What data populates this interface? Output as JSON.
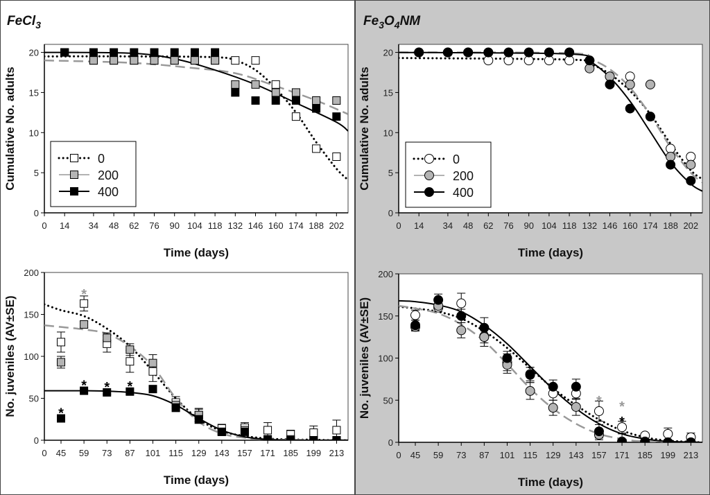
{
  "panels": {
    "left": {
      "title_parts": [
        "FeCl",
        "3",
        ""
      ],
      "background": "#ffffff"
    },
    "right": {
      "title_parts": [
        "Fe",
        "3",
        "O",
        "4",
        "NM"
      ],
      "background": "#c8c8c8"
    }
  },
  "colors": {
    "open_fill": "#ffffff",
    "gray_fill": "#b4b4b4",
    "black_fill": "#000000",
    "dashed_line": "#999999",
    "asterisk_gray": "#999999",
    "asterisk_black": "#000000"
  },
  "chart_data": [
    {
      "id": "fecl3-adults",
      "type": "scatter",
      "panel": "left",
      "marker": "square",
      "xlabel": "Time (days)",
      "ylabel": "Cumulative No. adults",
      "ylim": [
        0,
        21
      ],
      "xlim": [
        0,
        210
      ],
      "x_scale": "linear",
      "yticks": [
        0,
        5,
        10,
        15,
        20
      ],
      "xticks": [
        0,
        14,
        34,
        48,
        62,
        76,
        90,
        104,
        118,
        132,
        146,
        160,
        174,
        188,
        202
      ],
      "legend": {
        "placement": "bottom-left",
        "entries": [
          "0",
          "200",
          "400"
        ]
      },
      "series": [
        {
          "name": "0",
          "style": "open",
          "line": "dotted",
          "x": [
            14,
            34,
            48,
            62,
            76,
            90,
            104,
            118,
            132,
            146,
            160,
            174,
            188,
            202
          ],
          "y": [
            20,
            19,
            19,
            19,
            19,
            19,
            19,
            19,
            19,
            19,
            16,
            12,
            8,
            7
          ],
          "fit": {
            "x": [
              0,
              60,
              118,
              132,
              146,
              160,
              174,
              188,
              202,
              210
            ],
            "y": [
              19.5,
              19.5,
              19.4,
              19.0,
              17.8,
              15.5,
              12.5,
              8.8,
              5.5,
              4.1
            ]
          }
        },
        {
          "name": "200",
          "style": "gray",
          "line": "dashed",
          "x": [
            14,
            34,
            48,
            62,
            76,
            90,
            104,
            118,
            132,
            146,
            160,
            174,
            188,
            202
          ],
          "y": [
            20,
            19,
            19,
            19,
            19,
            19,
            19,
            19,
            16,
            16,
            15,
            15,
            14,
            14
          ],
          "fit": {
            "x": [
              0,
              60,
              100,
              132,
              160,
              188,
              210
            ],
            "y": [
              19,
              18.7,
              18.1,
              17.4,
              15.8,
              14.0,
              12.3
            ]
          }
        },
        {
          "name": "400",
          "style": "black",
          "line": "solid",
          "x": [
            14,
            34,
            48,
            62,
            76,
            90,
            104,
            118,
            132,
            146,
            160,
            174,
            188,
            202
          ],
          "y": [
            20,
            20,
            20,
            20,
            20,
            20,
            20,
            20,
            15,
            14,
            14,
            14,
            13,
            12
          ],
          "fit": {
            "x": [
              0,
              60,
              90,
              118,
              146,
              174,
              202,
              210
            ],
            "y": [
              20,
              19.9,
              19.2,
              17.8,
              16.0,
              13.7,
              11.3,
              10.2
            ]
          }
        }
      ]
    },
    {
      "id": "fe3o4nm-adults",
      "type": "scatter",
      "panel": "right",
      "marker": "circle",
      "xlabel": "Time (days)",
      "ylabel": "Cumulative No. adults",
      "ylim": [
        0,
        21
      ],
      "xlim": [
        0,
        210
      ],
      "x_scale": "linear",
      "yticks": [
        0,
        5,
        10,
        15,
        20
      ],
      "xticks": [
        0,
        14,
        34,
        48,
        62,
        76,
        90,
        104,
        118,
        132,
        146,
        160,
        174,
        188,
        202
      ],
      "legend": {
        "placement": "bottom-left",
        "entries": [
          "0",
          "200",
          "400"
        ]
      },
      "series": [
        {
          "name": "0",
          "style": "open",
          "line": "dotted",
          "x": [
            14,
            34,
            48,
            62,
            76,
            90,
            104,
            118,
            132,
            146,
            160,
            174,
            188,
            202
          ],
          "y": [
            20,
            20,
            20,
            19,
            19,
            19,
            19,
            19,
            19,
            17,
            17,
            12,
            8,
            7
          ],
          "fit": {
            "x": [
              0,
              118,
              132,
              146,
              160,
              174,
              188,
              202,
              210
            ],
            "y": [
              19.3,
              19.1,
              18.6,
              17.3,
              15.2,
              12.3,
              8.6,
              5.3,
              4.2
            ]
          }
        },
        {
          "name": "200",
          "style": "gray",
          "line": "dashed",
          "x": [
            14,
            34,
            48,
            62,
            76,
            90,
            104,
            118,
            132,
            146,
            160,
            174,
            188,
            202
          ],
          "y": [
            20,
            20,
            20,
            20,
            20,
            20,
            20,
            20,
            18,
            17,
            16,
            16,
            7,
            6
          ],
          "fit": {
            "x": [
              0,
              118,
              132,
              146,
              160,
              174,
              188,
              202,
              210
            ],
            "y": [
              20,
              19.9,
              19.2,
              17.9,
              15.6,
              12.2,
              8.2,
              5.0,
              3.8
            ]
          }
        },
        {
          "name": "400",
          "style": "black",
          "line": "solid",
          "x": [
            14,
            34,
            48,
            62,
            76,
            90,
            104,
            118,
            132,
            146,
            160,
            174,
            188,
            202
          ],
          "y": [
            20,
            20,
            20,
            20,
            20,
            20,
            20,
            20,
            19,
            16,
            13,
            12,
            6,
            4
          ],
          "fit": {
            "x": [
              0,
              118,
              132,
              146,
              160,
              174,
              188,
              202,
              210
            ],
            "y": [
              20,
              19.8,
              18.9,
              16.9,
              13.9,
              10.1,
              6.3,
              3.6,
              2.7
            ]
          }
        }
      ]
    },
    {
      "id": "fecl3-juveniles",
      "type": "scatter",
      "panel": "left",
      "marker": "square",
      "xlabel": "Time (days)",
      "ylabel": "No. juveniles (AV±SE)",
      "ylim": [
        0,
        200
      ],
      "xlim": [
        0,
        220
      ],
      "x_scale": "broken",
      "yticks": [
        0,
        50,
        100,
        150,
        200
      ],
      "xticks": [
        0,
        45,
        59,
        73,
        87,
        101,
        115,
        129,
        143,
        157,
        171,
        185,
        199,
        213
      ],
      "series": [
        {
          "name": "0",
          "style": "open",
          "line": "dotted",
          "x": [
            45,
            59,
            73,
            87,
            101,
            115,
            129,
            143,
            157,
            171,
            185,
            199,
            213
          ],
          "y": [
            117,
            163,
            115,
            94,
            82,
            45,
            30,
            14,
            15,
            12,
            7,
            9,
            12
          ],
          "se": [
            12,
            9,
            10,
            13,
            12,
            7,
            8,
            5,
            6,
            9,
            5,
            8,
            12
          ],
          "fit": {
            "x": [
              0,
              45,
              59,
              73,
              87,
              101,
              115,
              129,
              143,
              157,
              171,
              185,
              220
            ],
            "y": [
              162,
              155,
              148,
              133,
              112,
              82,
              50,
              25,
              11,
              5,
              2,
              1,
              0
            ]
          }
        },
        {
          "name": "200",
          "style": "gray",
          "line": "dashed",
          "x": [
            45,
            59,
            73,
            87,
            101,
            115,
            129,
            143,
            157,
            171,
            185,
            199,
            213
          ],
          "y": [
            93,
            138,
            122,
            108,
            92,
            42,
            30,
            10,
            12,
            1,
            1,
            0,
            0
          ],
          "se": [
            7,
            4,
            6,
            7,
            10,
            6,
            7,
            3,
            4,
            1,
            1,
            0,
            0
          ],
          "fit": {
            "x": [
              0,
              45,
              59,
              73,
              87,
              101,
              115,
              129,
              143,
              157,
              171,
              220
            ],
            "y": [
              137,
              135,
              132,
              127,
              112,
              88,
              50,
              22,
              8,
              3,
              1,
              0
            ]
          }
        },
        {
          "name": "400",
          "style": "black",
          "line": "solid",
          "x": [
            45,
            59,
            73,
            87,
            101,
            115,
            129,
            143,
            157,
            171,
            185,
            199,
            213
          ],
          "y": [
            26,
            59,
            57,
            58,
            61,
            39,
            25,
            10,
            10,
            1,
            0,
            0,
            0
          ],
          "se": [
            2,
            2,
            2,
            3,
            3,
            5,
            5,
            2,
            2,
            1,
            0,
            0,
            0
          ],
          "fit": {
            "x": [
              0,
              59,
              73,
              87,
              101,
              115,
              129,
              143,
              157,
              171,
              185,
              220
            ],
            "y": [
              59,
              59,
              58.5,
              57,
              53,
              42,
              26,
              12,
              4,
              1,
              0,
              0
            ]
          }
        }
      ],
      "annotations": [
        {
          "text": "*",
          "x": 59,
          "y": 177,
          "color": "gray"
        },
        {
          "text": "*",
          "x": 45,
          "y": 35,
          "color": "black"
        },
        {
          "text": "*",
          "x": 59,
          "y": 68,
          "color": "black"
        },
        {
          "text": "*",
          "x": 73,
          "y": 66,
          "color": "black"
        },
        {
          "text": "*",
          "x": 87,
          "y": 67,
          "color": "black"
        }
      ]
    },
    {
      "id": "fe3o4nm-juveniles",
      "type": "scatter",
      "panel": "right",
      "marker": "circle",
      "xlabel": "Time (days)",
      "ylabel": "No. juveniles (AV±SE)",
      "ylim": [
        0,
        200
      ],
      "xlim": [
        0,
        220
      ],
      "x_scale": "broken",
      "yticks": [
        0,
        50,
        100,
        150,
        200
      ],
      "xticks": [
        0,
        45,
        59,
        73,
        87,
        101,
        115,
        129,
        143,
        157,
        171,
        185,
        199,
        213
      ],
      "series": [
        {
          "name": "0",
          "style": "open",
          "line": "dotted",
          "x": [
            45,
            59,
            73,
            87,
            101,
            115,
            129,
            143,
            157,
            171,
            185,
            199,
            213
          ],
          "y": [
            151,
            160,
            165,
            126,
            95,
            81,
            58,
            58,
            37,
            18,
            8,
            10,
            6
          ],
          "se": [
            6,
            5,
            12,
            8,
            10,
            8,
            8,
            7,
            12,
            7,
            3,
            7,
            5
          ],
          "fit": {
            "x": [
              0,
              45,
              59,
              73,
              87,
              101,
              115,
              129,
              143,
              157,
              171,
              185,
              199,
              220
            ],
            "y": [
              161,
              159,
              155,
              147,
              132,
              112,
              88,
              64,
              44,
              27,
              14,
              6,
              2,
              0
            ]
          }
        },
        {
          "name": "200",
          "style": "gray",
          "line": "dashed",
          "x": [
            45,
            59,
            73,
            87,
            101,
            115,
            129,
            143,
            157,
            171,
            185,
            199,
            213
          ],
          "y": [
            137,
            162,
            133,
            125,
            92,
            61,
            41,
            42,
            9,
            1,
            1,
            0,
            0
          ],
          "se": [
            5,
            5,
            9,
            11,
            10,
            10,
            9,
            10,
            6,
            1,
            1,
            0,
            0
          ],
          "fit": {
            "x": [
              0,
              45,
              59,
              73,
              87,
              101,
              115,
              129,
              143,
              157,
              171,
              185,
              220
            ],
            "y": [
              162,
              159,
              153,
              140,
              120,
              93,
              64,
              40,
              22,
              10,
              4,
              1,
              0
            ]
          }
        },
        {
          "name": "400",
          "style": "black",
          "line": "solid",
          "x": [
            45,
            59,
            73,
            87,
            101,
            115,
            129,
            143,
            157,
            171,
            185,
            199,
            213
          ],
          "y": [
            139,
            169,
            150,
            136,
            100,
            80,
            66,
            66,
            13,
            0,
            0,
            0,
            0
          ],
          "se": [
            6,
            7,
            8,
            12,
            8,
            9,
            8,
            9,
            8,
            10,
            0,
            0,
            0
          ],
          "fit": {
            "x": [
              0,
              45,
              59,
              73,
              87,
              101,
              115,
              129,
              143,
              157,
              171,
              185,
              199,
              220
            ],
            "y": [
              168,
              167,
              163,
              155,
              139,
              117,
              90,
              63,
              40,
              22,
              10,
              4,
              1,
              0
            ]
          }
        }
      ],
      "annotations": [
        {
          "text": "*",
          "x": 157,
          "y": 52,
          "color": "gray"
        },
        {
          "text": "*",
          "x": 171,
          "y": 38,
          "color": "gray"
        },
        {
          "text": "*",
          "x": 171,
          "y": 27,
          "color": "black"
        }
      ]
    }
  ]
}
